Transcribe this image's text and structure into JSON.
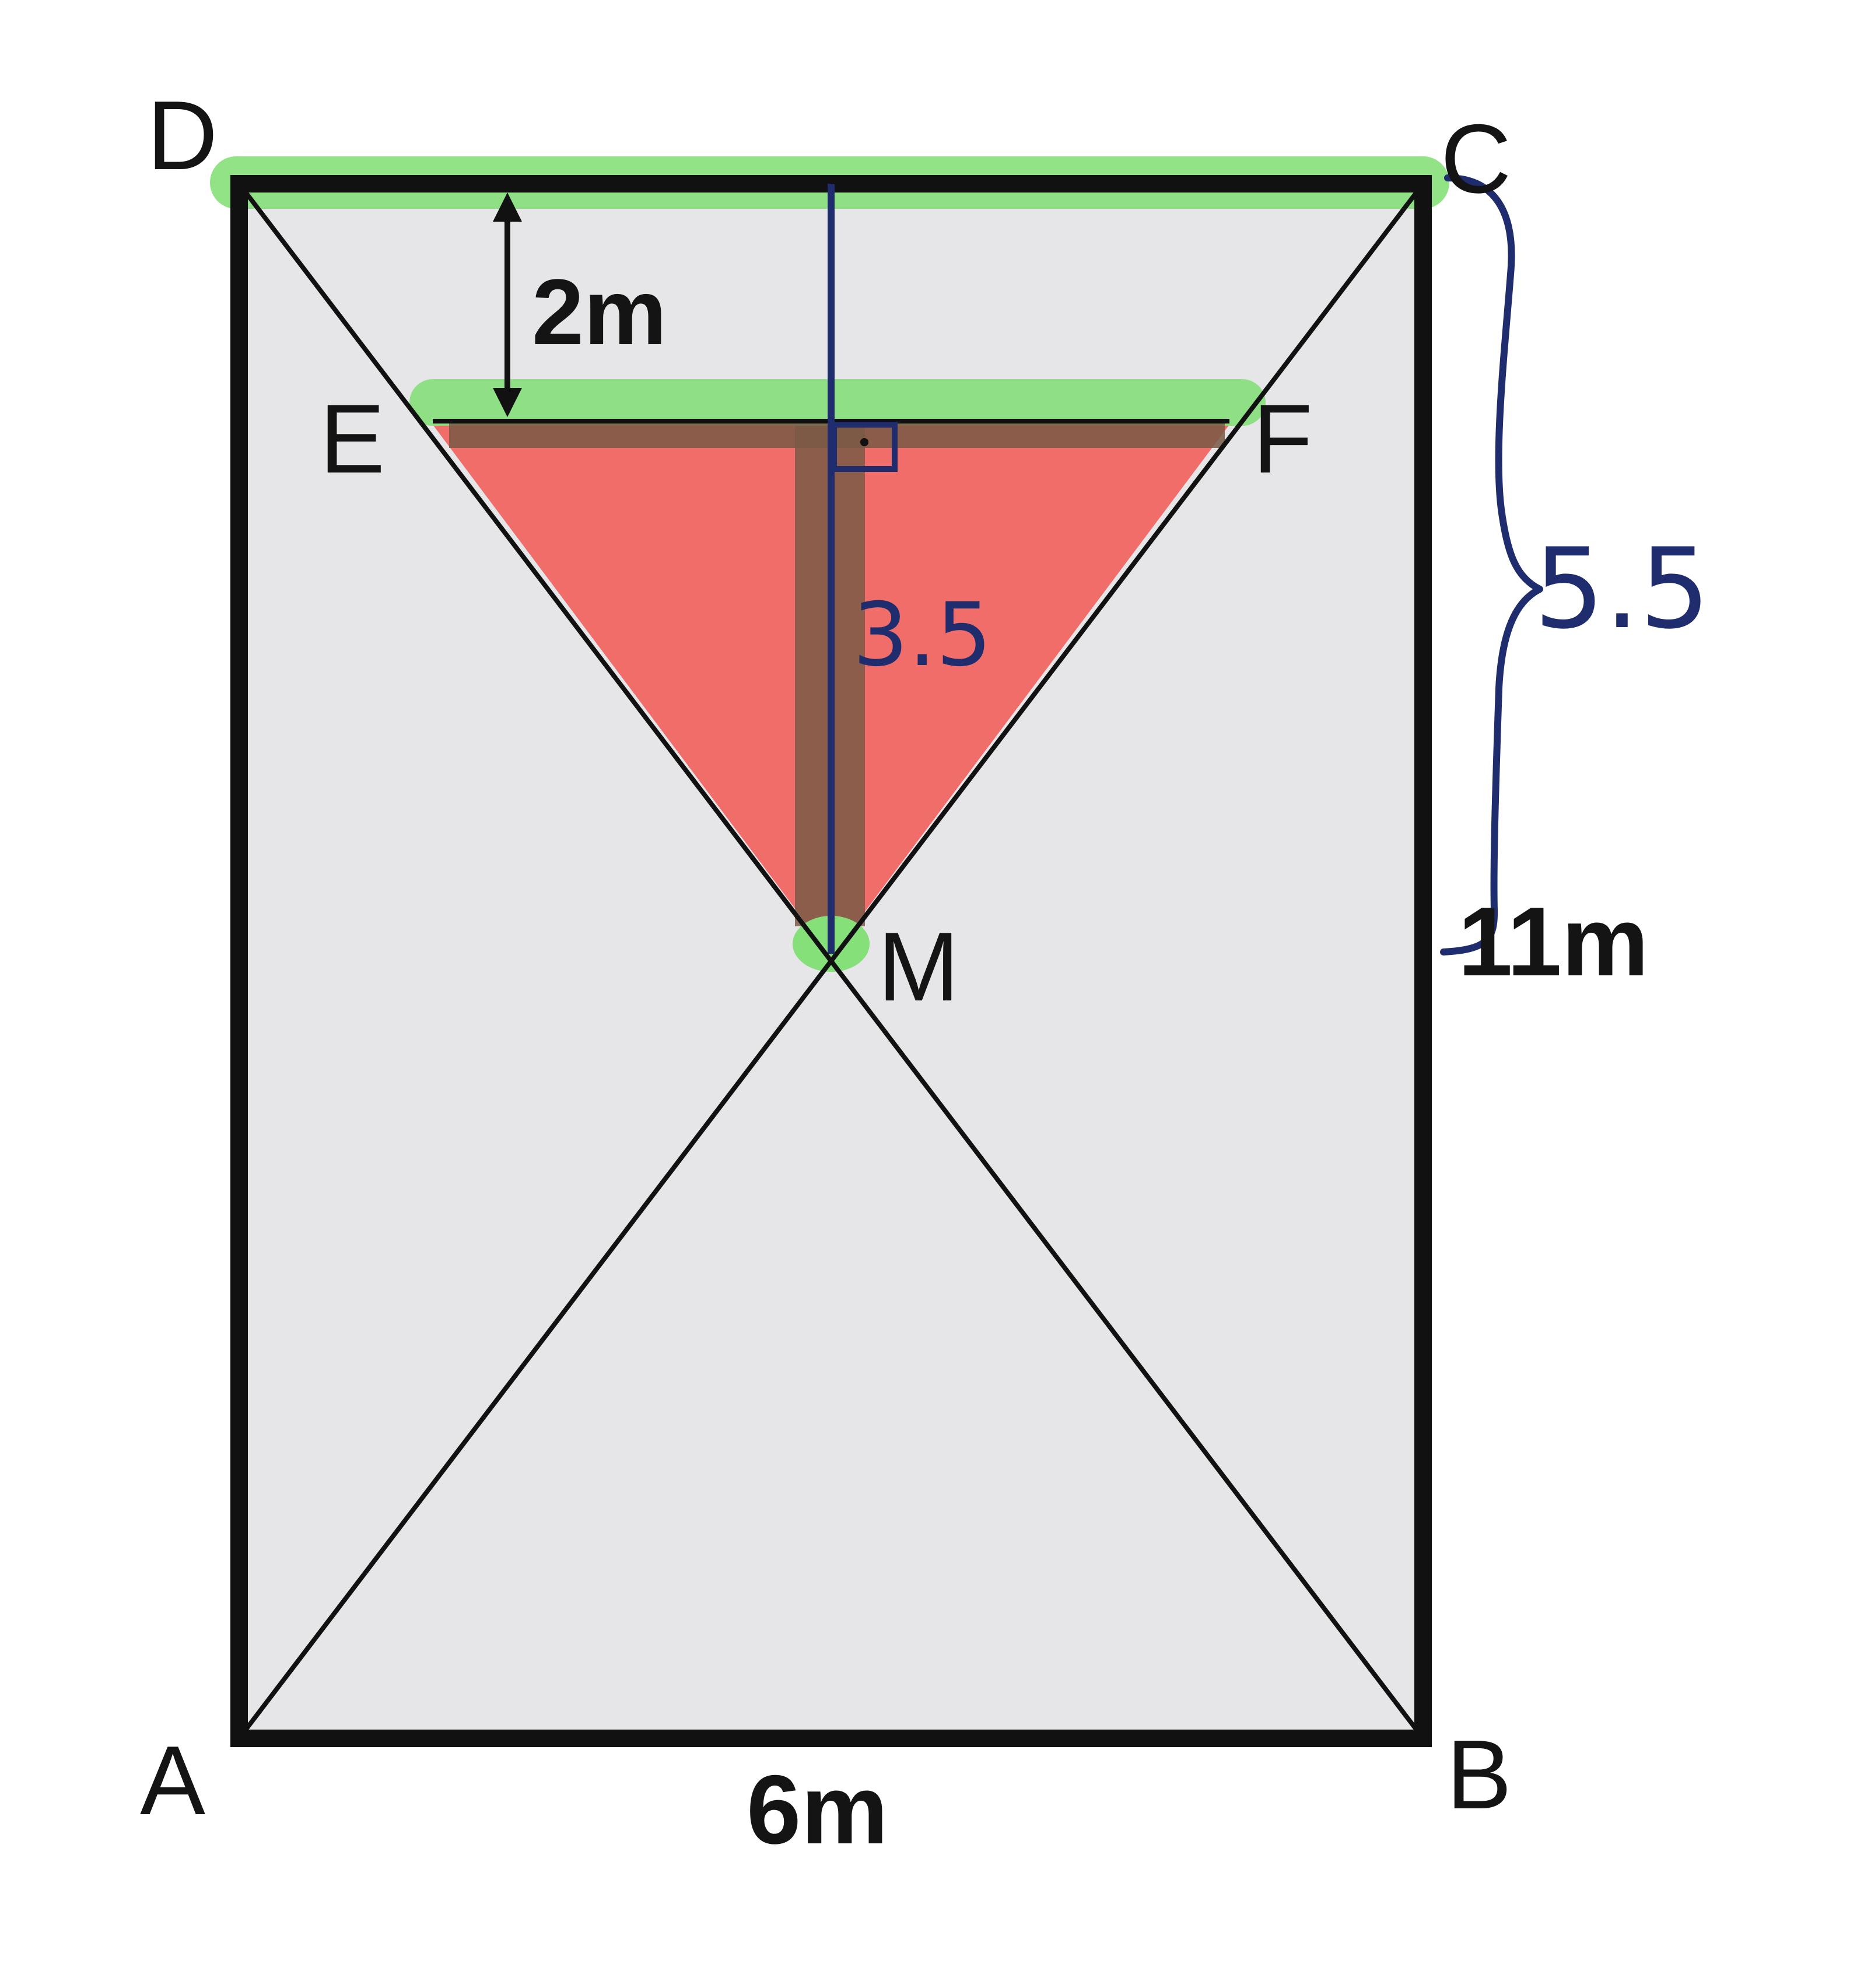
{
  "points": {
    "A": "A",
    "B": "B",
    "C": "C",
    "D": "D",
    "E": "E",
    "F": "F",
    "M": "M"
  },
  "measurements": {
    "depth": "2m",
    "width": "6m",
    "height": "11m",
    "half_height": "5.5",
    "triangle_height": "3.5"
  },
  "colors": {
    "rectangle_fill": "#e6e5e8",
    "outline": "#111111",
    "triangle_fill": "#f06d6a",
    "highlight": "#86e07a",
    "altitude_band": "#7b5a45",
    "pen": "#1f2d6e"
  }
}
